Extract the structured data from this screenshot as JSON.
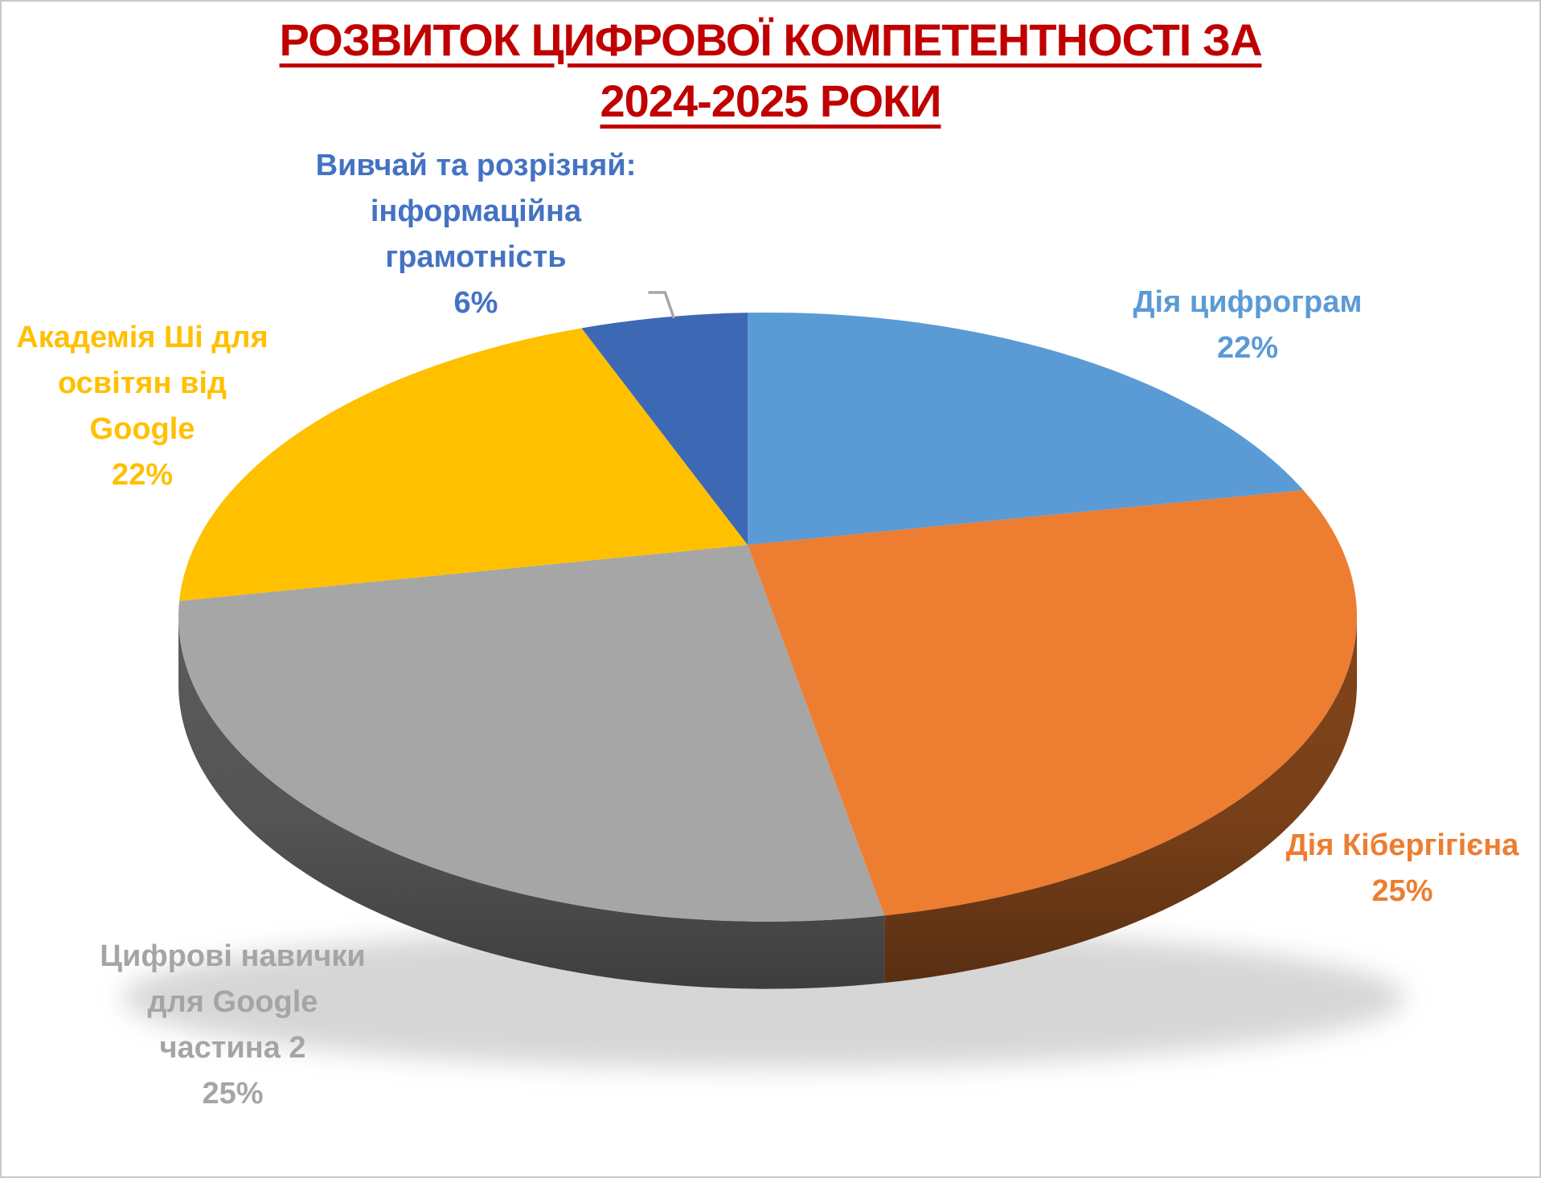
{
  "title": {
    "line1": "РОЗВИТОК ЦИФРОВОЇ КОМПЕТЕНТНОСТІ ЗА",
    "line2": "2024-2025 РОКИ",
    "color": "#C00000"
  },
  "chart_data": {
    "type": "pie",
    "style": "3d-pie",
    "title": "РОЗВИТОК ЦИФРОВОЇ КОМПЕТЕНТНОСТІ ЗА 2024-2025 РОКИ",
    "unit": "percent",
    "legend_position": "none",
    "labels_position": "outside-with-percent",
    "slices": [
      {
        "label": "Дія цифрограм",
        "value": 22,
        "pct_label": "22%",
        "color": "#5B9BD5",
        "label_color": "#5B9BD5",
        "label_lines": [
          "Дія цифрограм"
        ]
      },
      {
        "label": "Дія Кібергігієна",
        "value": 25,
        "pct_label": "25%",
        "color": "#ED7D31",
        "label_color": "#ED7D31",
        "label_lines": [
          "Дія Кібергігієна"
        ]
      },
      {
        "label": "Цифрові навички для Google частина 2",
        "value": 25,
        "pct_label": "25%",
        "color": "#A6A6A6",
        "label_color": "#A5A5A5",
        "label_lines": [
          "Цифрові навички",
          "для Google",
          "частина 2"
        ]
      },
      {
        "label": "Академія Ші для освітян від Google",
        "value": 22,
        "pct_label": "22%",
        "color": "#FFC000",
        "label_color": "#FFC000",
        "label_lines": [
          "Академія Ші для",
          "освітян від",
          "Google"
        ]
      },
      {
        "label": "Вивчай та розрізняй: інформаційна грамотність",
        "value": 6,
        "pct_label": "6%",
        "color": "#3D68B3",
        "label_color": "#4472C4",
        "label_lines": [
          "Вивчай та розрізняй:",
          "інформаційна",
          "грамотність"
        ]
      }
    ],
    "leader_line_color": "#A6A6A6"
  }
}
